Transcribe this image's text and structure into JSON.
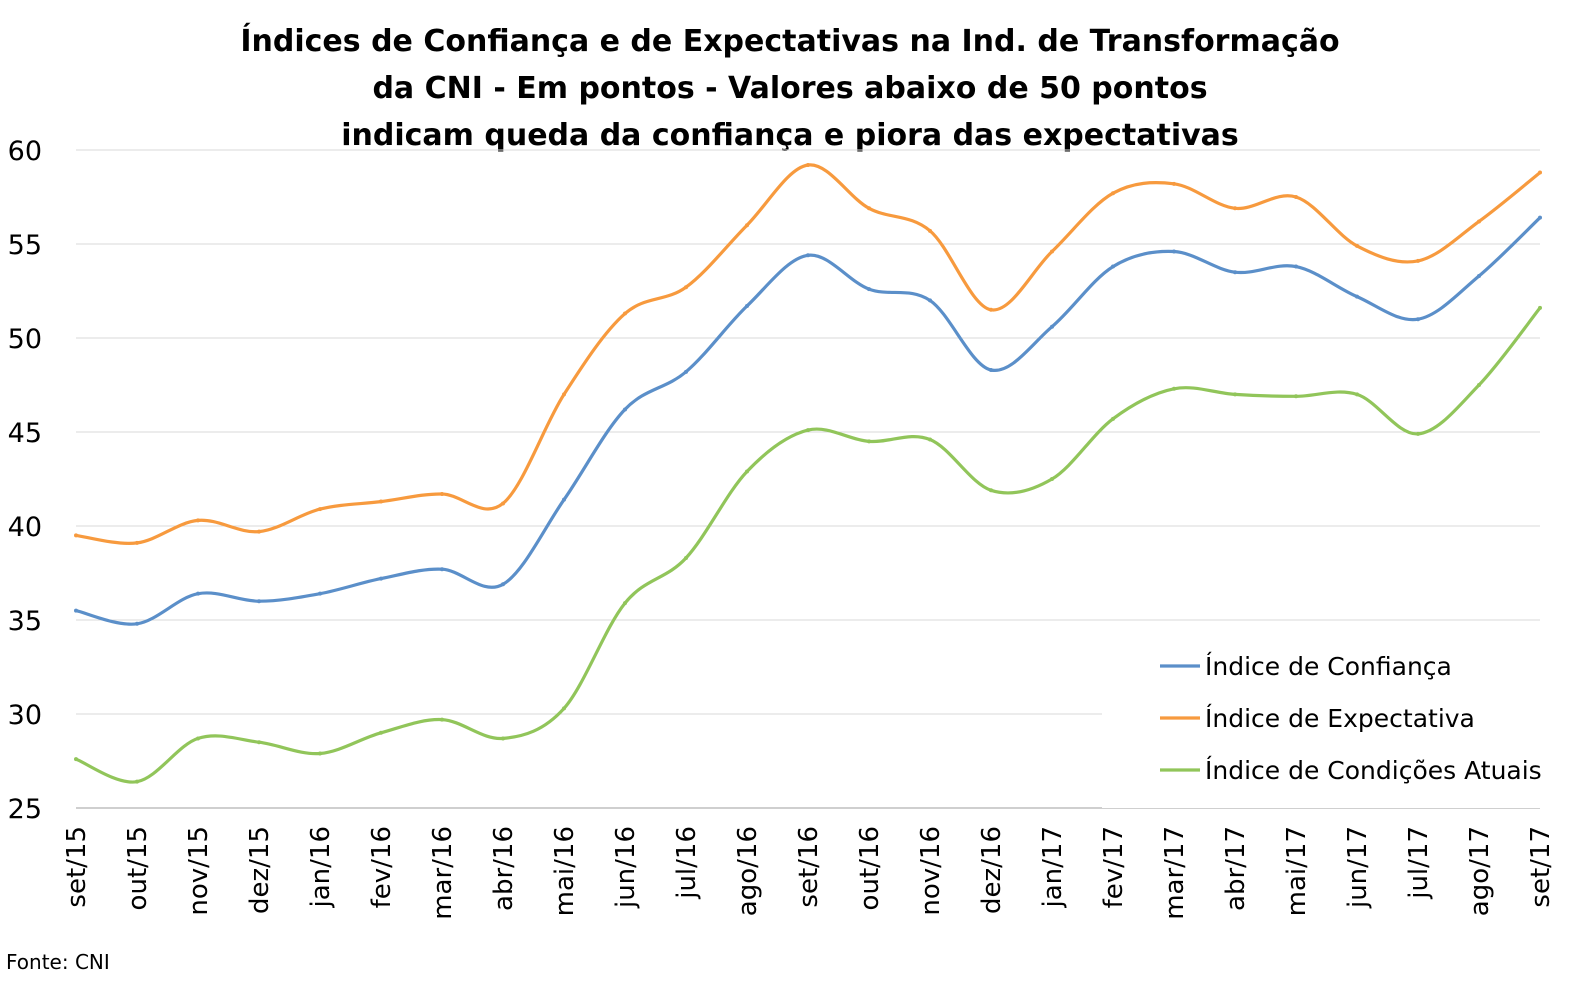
{
  "chart_data": {
    "type": "line",
    "title": "Índices de Confiança e de Expectativas na Ind. de Transformação da CNI - Em pontos - Valores abaixo de 50 pontos indicam queda da confiança e piora das expectativas",
    "title_lines": [
      "Índices de Confiança e de Expectativas na Ind. de Transformação",
      "da CNI - Em pontos - Valores abaixo de 50 pontos",
      "indicam queda da confiança e piora das expectativas"
    ],
    "xlabel": "",
    "ylabel": "",
    "ylim": [
      25,
      60
    ],
    "yticks": [
      25,
      30,
      35,
      40,
      45,
      50,
      55,
      60
    ],
    "grid": true,
    "legend_position": "bottom-right",
    "categories": [
      "set/15",
      "out/15",
      "nov/15",
      "dez/15",
      "jan/16",
      "fev/16",
      "mar/16",
      "abr/16",
      "mai/16",
      "jun/16",
      "jul/16",
      "ago/16",
      "set/16",
      "out/16",
      "nov/16",
      "dez/16",
      "jan/17",
      "fev/17",
      "mar/17",
      "abr/17",
      "mai/17",
      "jun/17",
      "jul/17",
      "ago/17",
      "set/17"
    ],
    "series": [
      {
        "name": "Índice de Confiança",
        "color": "#5B8FC9",
        "values": [
          35.5,
          34.8,
          36.4,
          36.0,
          36.4,
          37.2,
          37.7,
          36.9,
          41.4,
          46.2,
          48.2,
          51.7,
          54.4,
          52.6,
          52.0,
          48.3,
          50.6,
          53.8,
          54.6,
          53.5,
          53.8,
          52.2,
          51.0,
          53.3,
          56.4
        ]
      },
      {
        "name": "Índice de Expectativa",
        "color": "#F79A3E",
        "values": [
          39.5,
          39.1,
          40.3,
          39.7,
          40.9,
          41.3,
          41.7,
          41.2,
          47.0,
          51.3,
          52.7,
          56.0,
          59.2,
          56.9,
          55.7,
          51.5,
          54.6,
          57.7,
          58.2,
          56.9,
          57.5,
          54.9,
          54.1,
          56.2,
          58.8
        ]
      },
      {
        "name": "Índice de Condições Atuais",
        "color": "#91C55A",
        "values": [
          27.6,
          26.4,
          28.7,
          28.5,
          27.9,
          29.0,
          29.7,
          28.7,
          30.3,
          35.9,
          38.3,
          42.9,
          45.1,
          44.5,
          44.6,
          41.9,
          42.5,
          45.7,
          47.3,
          47.0,
          46.9,
          47.0,
          44.9,
          47.5,
          51.6
        ]
      }
    ]
  },
  "source": "Fonte: CNI"
}
